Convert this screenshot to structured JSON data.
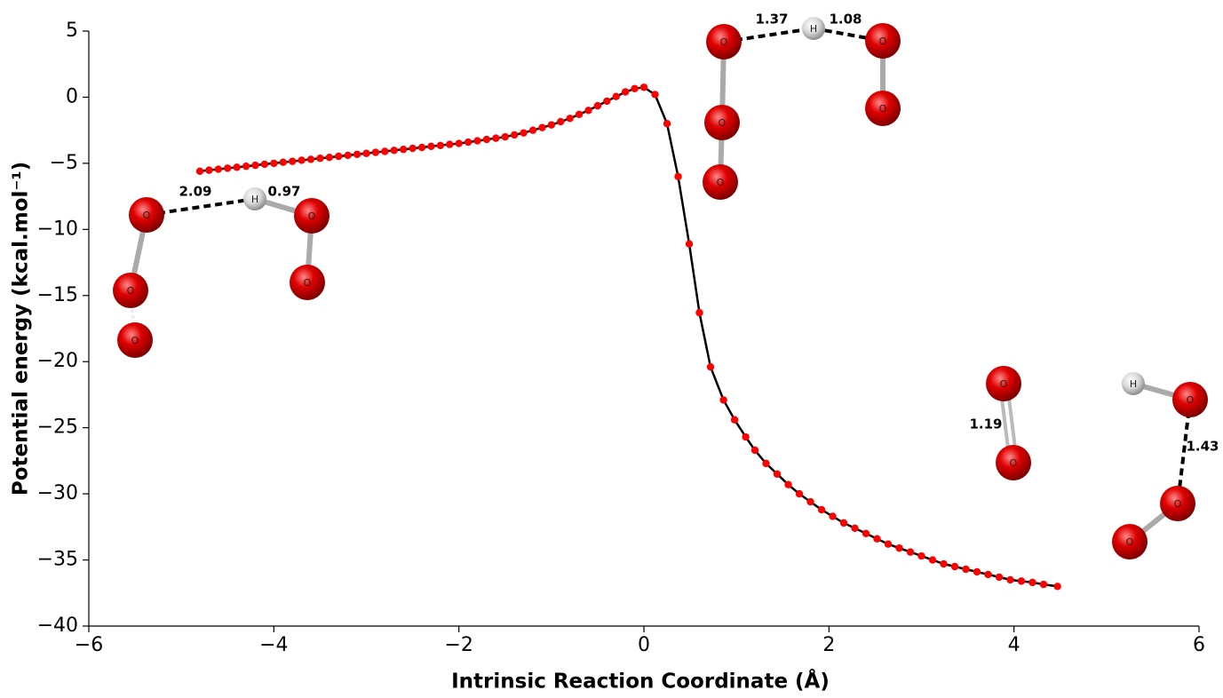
{
  "chart_data": {
    "type": "scatter",
    "xlabel": "Intrinsic Reaction Coordinate (Å)",
    "ylabel": "Potential energy (kcal.mol⁻¹)",
    "xlim": [
      -6,
      6
    ],
    "ylim": [
      -40,
      5
    ],
    "xticks": [
      {
        "value": -6,
        "label": "−6"
      },
      {
        "value": -4,
        "label": "−4"
      },
      {
        "value": -2,
        "label": "−2"
      },
      0,
      2,
      4,
      6
    ],
    "yticks": [
      5,
      0,
      {
        "value": -5,
        "label": "−5"
      },
      {
        "value": -10,
        "label": "−10"
      },
      {
        "value": -15,
        "label": "−15"
      },
      {
        "value": -20,
        "label": "−20"
      },
      {
        "value": -25,
        "label": "−25"
      },
      {
        "value": -30,
        "label": "−30"
      },
      {
        "value": -35,
        "label": "−35"
      },
      {
        "value": -40,
        "label": "−40"
      }
    ],
    "line_color": "#000000",
    "series": [
      {
        "color": "#ff0000",
        "x": [
          -4.8,
          -4.7,
          -4.6,
          -4.5,
          -4.4,
          -4.3,
          -4.2,
          -4.1,
          -4.0,
          -3.9,
          -3.8,
          -3.7,
          -3.6,
          -3.5,
          -3.4,
          -3.3,
          -3.2,
          -3.1,
          -3.0,
          -2.9,
          -2.8,
          -2.7,
          -2.6,
          -2.5,
          -2.4,
          -2.3,
          -2.2,
          -2.1,
          -2.0,
          -1.9,
          -1.8,
          -1.7,
          -1.6,
          -1.5,
          -1.4,
          -1.3,
          -1.2,
          -1.1,
          -1.0,
          -0.9,
          -0.8,
          -0.7,
          -0.6,
          -0.5,
          -0.4,
          -0.3,
          -0.2,
          -0.1,
          0.0,
          0.12,
          0.25,
          0.37,
          0.49,
          0.6,
          0.72,
          0.86,
          0.98,
          1.1,
          1.2,
          1.32,
          1.44,
          1.56,
          1.68,
          1.8,
          1.92,
          2.04,
          2.16,
          2.28,
          2.4,
          2.52,
          2.64,
          2.76,
          2.88,
          3.0,
          3.12,
          3.24,
          3.36,
          3.48,
          3.6,
          3.72,
          3.84,
          3.96,
          4.08,
          4.2,
          4.32,
          4.47
        ],
        "values": [
          -5.6,
          -5.52,
          -5.45,
          -5.37,
          -5.3,
          -5.22,
          -5.15,
          -5.07,
          -5.0,
          -4.92,
          -4.85,
          -4.77,
          -4.7,
          -4.62,
          -4.55,
          -4.47,
          -4.4,
          -4.32,
          -4.25,
          -4.17,
          -4.1,
          -4.02,
          -3.95,
          -3.87,
          -3.8,
          -3.72,
          -3.65,
          -3.57,
          -3.5,
          -3.4,
          -3.3,
          -3.2,
          -3.1,
          -3.0,
          -2.85,
          -2.7,
          -2.5,
          -2.3,
          -2.1,
          -1.85,
          -1.6,
          -1.3,
          -1.0,
          -0.65,
          -0.3,
          0.05,
          0.4,
          0.65,
          0.75,
          0.2,
          -2.0,
          -6.0,
          -11.1,
          -16.3,
          -20.4,
          -22.9,
          -24.4,
          -25.7,
          -26.7,
          -27.7,
          -28.5,
          -29.3,
          -30.0,
          -30.6,
          -31.2,
          -31.7,
          -32.2,
          -32.6,
          -33.0,
          -33.4,
          -33.8,
          -34.1,
          -34.4,
          -34.7,
          -35.0,
          -35.3,
          -35.5,
          -35.7,
          -35.9,
          -36.1,
          -36.3,
          -36.5,
          -36.6,
          -36.7,
          -36.85,
          -37.0
        ]
      }
    ],
    "structures": [
      {
        "atoms": [
          "O",
          "O",
          "O",
          "H",
          "O",
          "O"
        ],
        "distances": [
          2.09,
          0.97
        ]
      },
      {
        "atoms": [
          "O",
          "O",
          "O",
          "H",
          "O",
          "O"
        ],
        "distances": [
          1.37,
          1.08
        ]
      },
      {
        "atoms": [
          "O",
          "O"
        ],
        "distances": [
          1.19
        ]
      },
      {
        "atoms": [
          "H",
          "O",
          "O",
          "O"
        ],
        "distances": [
          1.43
        ]
      }
    ]
  }
}
